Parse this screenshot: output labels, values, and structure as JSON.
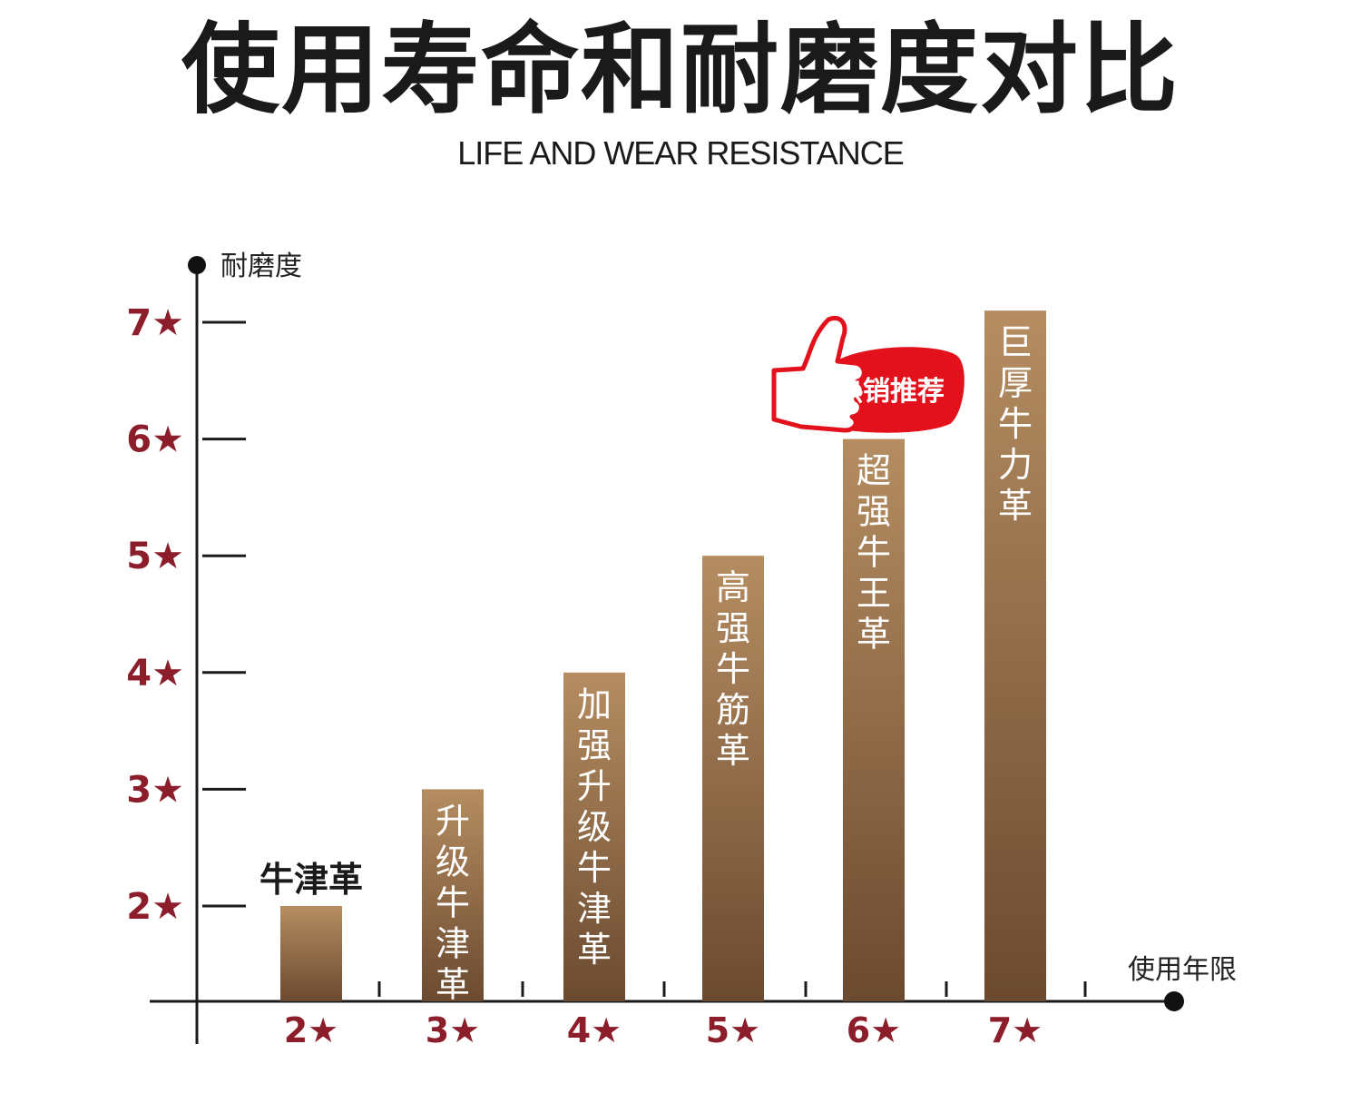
{
  "title": "使用寿命和耐磨度对比",
  "subtitle": "LIFE AND WEAR RESISTANCE",
  "badge": {
    "text": "热销推荐",
    "icon": "thumbs-up-icon",
    "color": "#e3111b",
    "target_category": "超强牛王革"
  },
  "colors": {
    "bar_top": "#b58d61",
    "bar_bottom": "#6b4a30",
    "tick_label": "#8c1d2a",
    "axis": "#1a1a1a"
  },
  "chart_data": {
    "type": "bar",
    "title": "使用寿命和耐磨度对比",
    "xlabel": "使用年限",
    "ylabel": "耐磨度",
    "categories": [
      "牛津革",
      "升级牛津革",
      "加强升级牛津革",
      "高强牛筋革",
      "超强牛王革",
      "巨厚牛力革"
    ],
    "x_tick_labels": [
      "2★",
      "3★",
      "4★",
      "5★",
      "6★",
      "7★"
    ],
    "y_tick_labels": [
      "2★",
      "3★",
      "4★",
      "5★",
      "6★",
      "7★"
    ],
    "y_ticks": [
      2,
      3,
      4,
      5,
      6,
      7
    ],
    "values": [
      2,
      3,
      4,
      5,
      6,
      7.1
    ],
    "ylim": [
      1,
      7.5
    ],
    "grid": false,
    "legend": "none"
  }
}
